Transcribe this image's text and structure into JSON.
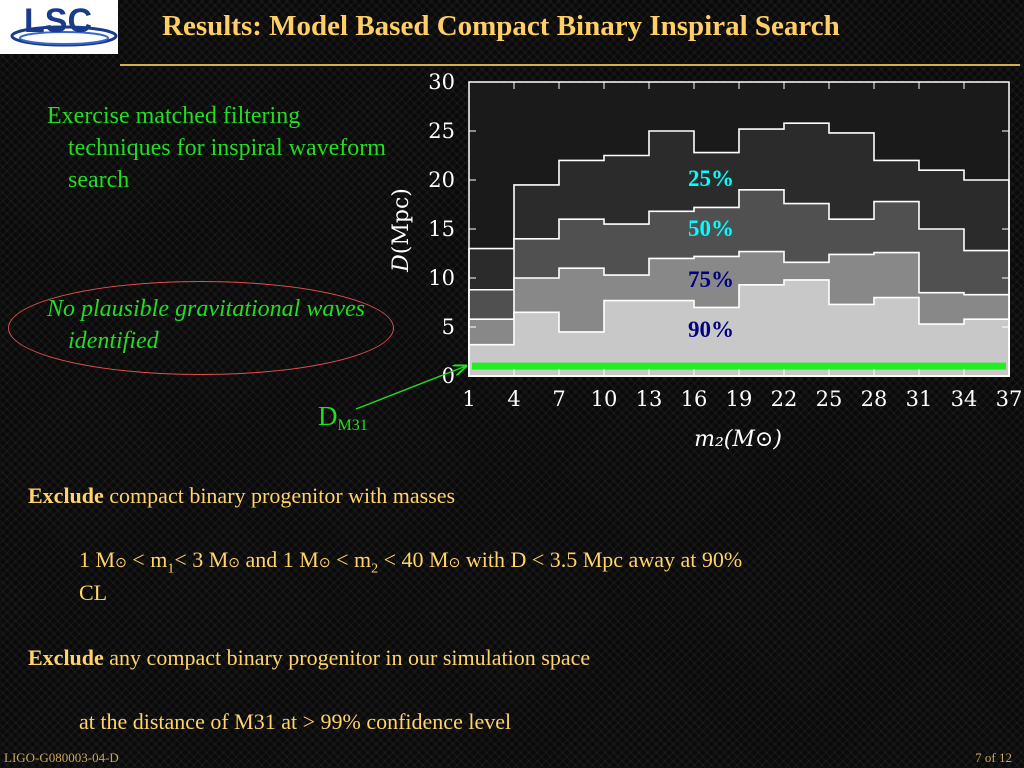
{
  "slide": {
    "logo_text": "LSC",
    "title": "Results: Model Based Compact Binary Inspiral Search",
    "bullet1": "Exercise matched filtering techniques for inspiral waveform search",
    "bullet2": "No plausible gravitational waves identified",
    "dm31_main": "D",
    "dm31_sub": "M31",
    "exclude1_bold": "Exclude",
    "exclude1_rest": " compact binary progenitor with masses",
    "cond": {
      "a": "1 M",
      "b": " < m",
      "b_sub": "1",
      "c": "< 3 M",
      "d": " and 1 M",
      "e": " < m",
      "e_sub": "2",
      "f": " < 40 M",
      "g": " with D < 3.5 Mpc away at 90%",
      "g2": "CL",
      "sun": "⊙"
    },
    "exclude2_bold": "Exclude",
    "exclude2_rest": " any compact binary progenitor in our simulation space",
    "m31_line": "at the distance of M31 at > 99% confidence level",
    "footer_left": "LIGO-G080003-04-D",
    "footer_right": "7 of 12"
  },
  "colors": {
    "title": "#ffcf66",
    "green": "#22dd22",
    "body": "#ffd36a",
    "label_cyan": "#00ffff",
    "label_blue": "#000080"
  },
  "chart_data": {
    "type": "area",
    "xlabel": "m₂(M⊙)",
    "ylabel_italic": "D",
    "ylabel_rest": "(Mpc)",
    "xticks": [
      1,
      4,
      7,
      10,
      13,
      16,
      19,
      22,
      25,
      28,
      31,
      34,
      37
    ],
    "yticks": [
      0,
      5,
      10,
      15,
      20,
      25,
      30
    ],
    "xlim": [
      1,
      37
    ],
    "ylim": [
      0,
      30
    ],
    "bin_edges": [
      1,
      4,
      7,
      10,
      13,
      16,
      19,
      22,
      25,
      28,
      31,
      34,
      37
    ],
    "series": [
      {
        "name": "25%",
        "values": [
          13.0,
          19.5,
          22.0,
          22.5,
          25.0,
          22.8,
          25.2,
          25.8,
          24.8,
          22.0,
          21.0,
          20.0
        ]
      },
      {
        "name": "50%",
        "values": [
          8.8,
          14.0,
          16.0,
          15.5,
          16.8,
          17.2,
          19.0,
          17.6,
          16.0,
          17.8,
          15.0,
          12.8
        ]
      },
      {
        "name": "75%",
        "values": [
          5.8,
          10.0,
          11.0,
          10.3,
          12.0,
          12.2,
          12.7,
          11.6,
          12.4,
          12.6,
          8.5,
          8.3
        ]
      },
      {
        "name": "90%",
        "values": [
          3.2,
          6.5,
          4.5,
          7.7,
          7.7,
          7.0,
          9.3,
          9.8,
          7.3,
          8.0,
          5.3,
          5.8
        ]
      }
    ],
    "series_colors": [
      "#2b2b2b",
      "#505050",
      "#888888",
      "#c8c8c8"
    ],
    "dm31_line": {
      "value": 0.9,
      "color": "#22ee22"
    }
  }
}
